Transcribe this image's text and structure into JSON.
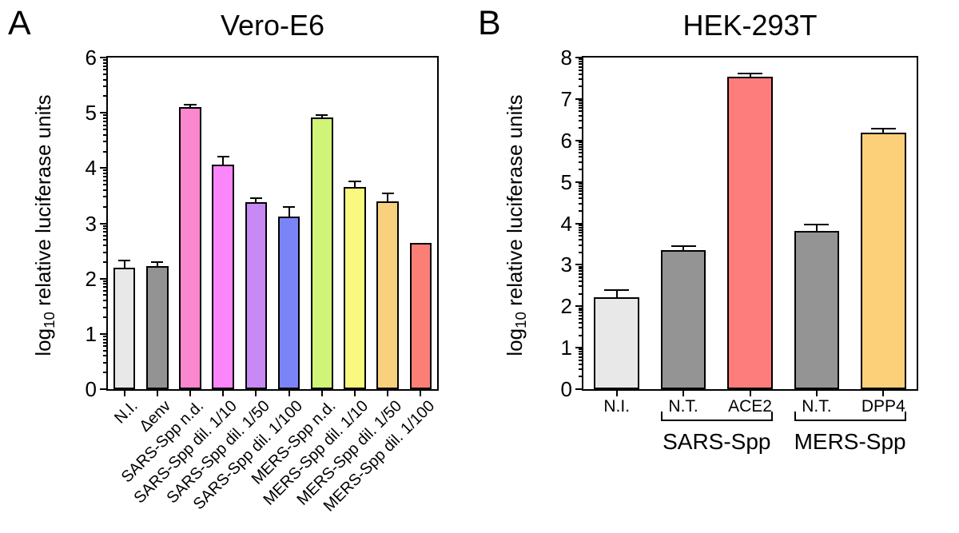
{
  "panels": [
    {
      "letter": "A",
      "title": "Vero-E6",
      "y_label": {
        "prefix": "log",
        "sub": "10",
        "rest": " relative luciferase units"
      }
    },
    {
      "letter": "B",
      "title": "HEK-293T",
      "y_label": {
        "prefix": "log",
        "sub": "10",
        "rest": " relative luciferase units"
      }
    }
  ],
  "chart_data": [
    {
      "type": "bar",
      "panel": "A",
      "title": "Vero-E6",
      "xlabel": "",
      "ylabel": "log10 relative luciferase units",
      "ylim": [
        0,
        6
      ],
      "yticks": [
        0,
        1,
        2,
        3,
        4,
        5,
        6
      ],
      "minor_ticks": "log-decade",
      "grid": false,
      "legend": "none",
      "categories": [
        "N.I.",
        "Δenv",
        "SARS-Spp n.d.",
        "SARS-Spp dil. 1/10",
        "SARS-Spp dil. 1/50",
        "SARS-Spp dil. 1/100",
        "MERS-Spp n.d.",
        "MERS-Spp dil. 1/10",
        "MERS-Spp dil. 1/50",
        "MERS-Spp dil. 1/100"
      ],
      "values": [
        2.2,
        2.22,
        5.1,
        4.06,
        3.38,
        3.12,
        4.92,
        3.66,
        3.4,
        2.65
      ],
      "errors_upper": [
        0.12,
        0.07,
        0.03,
        0.14,
        0.06,
        0.16,
        0.03,
        0.08,
        0.13,
        0
      ],
      "bar_colors": [
        "#E8E8E8",
        "#939393",
        "#FB87CE",
        "#FB85FB",
        "#C78AF5",
        "#7A84F6",
        "#CFF478",
        "#FAF97F",
        "#F9D07E",
        "#FC7F77"
      ],
      "bar_edge_color": "#000000",
      "error_color": "#000000",
      "x_label_rotation_deg": -45
    },
    {
      "type": "bar",
      "panel": "B",
      "title": "HEK-293T",
      "xlabel": "",
      "ylabel": "log10 relative luciferase units",
      "ylim": [
        0,
        8
      ],
      "yticks": [
        0,
        1,
        2,
        3,
        4,
        5,
        6,
        7,
        8
      ],
      "minor_ticks": "log-decade",
      "grid": false,
      "legend": "none",
      "categories": [
        "N.I.",
        "N.T.",
        "ACE2",
        "N.T.",
        "DPP4"
      ],
      "values": [
        2.22,
        3.36,
        7.54,
        3.81,
        6.18
      ],
      "errors_upper": [
        0.15,
        0.07,
        0.05,
        0.15,
        0.08
      ],
      "bar_colors": [
        "#E8E8E8",
        "#949494",
        "#FC7D7B",
        "#949494",
        "#FCCF79"
      ],
      "bar_edge_color": "#000000",
      "error_color": "#000000",
      "x_label_rotation_deg": 0,
      "group_brackets": [
        {
          "label": "SARS-Spp",
          "from_index": 1,
          "to_index": 2
        },
        {
          "label": "MERS-Spp",
          "from_index": 3,
          "to_index": 4
        }
      ]
    }
  ]
}
